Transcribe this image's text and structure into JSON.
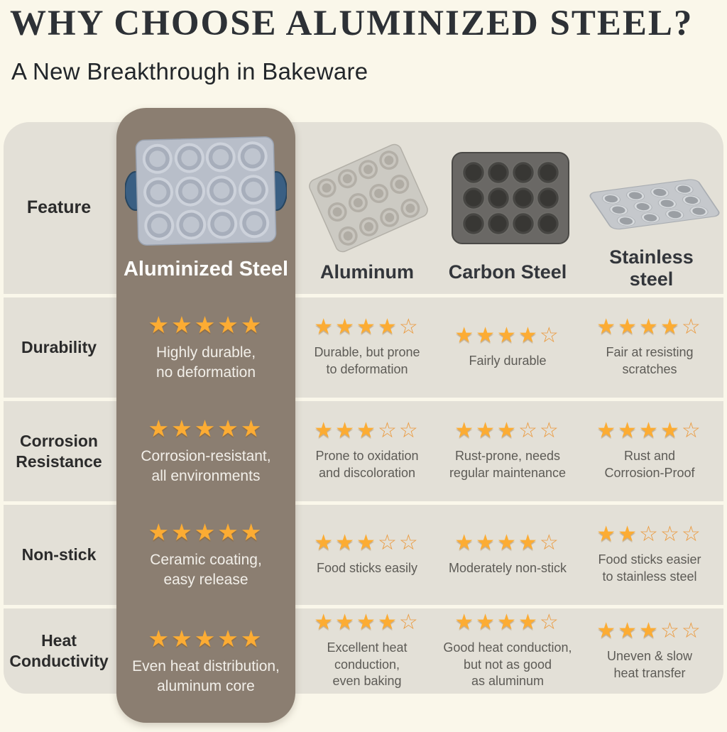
{
  "title": "WHY CHOOSE ALUMINIZED STEEL?",
  "subtitle": "A New Breakthrough in Bakeware",
  "chart_data": {
    "type": "table",
    "title": "WHY CHOOSE ALUMINIZED STEEL?",
    "subtitle": "A New Breakthrough in Bakeware",
    "header_column": "Feature",
    "materials": [
      "Aluminized Steel",
      "Aluminum",
      "Carbon Steel",
      "Stainless steel"
    ],
    "highlighted_material": "Aluminized Steel",
    "rating_max": 5,
    "rows": [
      {
        "feature": "Durability",
        "cells": [
          {
            "material": "Aluminized Steel",
            "stars": 5,
            "text": "Highly durable,\nno deformation"
          },
          {
            "material": "Aluminum",
            "stars": 4,
            "text": "Durable, but prone\nto deformation"
          },
          {
            "material": "Carbon Steel",
            "stars": 4,
            "text": "Fairly durable"
          },
          {
            "material": "Stainless steel",
            "stars": 4,
            "text": "Fair at resisting\nscratches"
          }
        ]
      },
      {
        "feature": "Corrosion\nResistance",
        "cells": [
          {
            "material": "Aluminized Steel",
            "stars": 5,
            "text": "Corrosion-resistant,\nall environments"
          },
          {
            "material": "Aluminum",
            "stars": 3,
            "text": "Prone to oxidation\nand discoloration"
          },
          {
            "material": "Carbon Steel",
            "stars": 3,
            "text": "Rust-prone, needs\nregular maintenance"
          },
          {
            "material": "Stainless steel",
            "stars": 4,
            "text": "Rust and\nCorrosion-Proof"
          }
        ]
      },
      {
        "feature": "Non-stick",
        "cells": [
          {
            "material": "Aluminized Steel",
            "stars": 5,
            "text": "Ceramic coating,\neasy release"
          },
          {
            "material": "Aluminum",
            "stars": 3,
            "text": "Food sticks easily"
          },
          {
            "material": "Carbon Steel",
            "stars": 4,
            "text": "Moderately non-stick"
          },
          {
            "material": "Stainless steel",
            "stars": 2,
            "text": "Food sticks easier\nto stainless steel"
          }
        ]
      },
      {
        "feature": "Heat\nConductivity",
        "cells": [
          {
            "material": "Aluminized Steel",
            "stars": 5,
            "text": "Even heat distribution,\naluminum core"
          },
          {
            "material": "Aluminum",
            "stars": 4,
            "text": "Excellent heat\nconduction,\neven baking"
          },
          {
            "material": "Carbon Steel",
            "stars": 4,
            "text": "Good heat conduction,\nbut not as good\nas aluminum"
          },
          {
            "material": "Stainless steel",
            "stars": 3,
            "text": "Uneven & slow\nheat transfer"
          }
        ]
      }
    ]
  },
  "images": {
    "aluminized": "aluminized-steel-muffin-pan-photo",
    "aluminum": "aluminum-muffin-pan-photo",
    "carbon": "carbon-steel-muffin-pan-photo",
    "stainless": "stainless-steel-muffin-pan-photo"
  },
  "colors": {
    "page_background": "#faf7ea",
    "row_band": "#e3e0d7",
    "highlight_column": "#8b7e71",
    "star_full": "#fcac33",
    "star_empty_outline": "#eb9a3e",
    "title_text": "#2d3136",
    "cell_text": "#5d5b56",
    "highlight_cell_text": "#f2efe9"
  }
}
